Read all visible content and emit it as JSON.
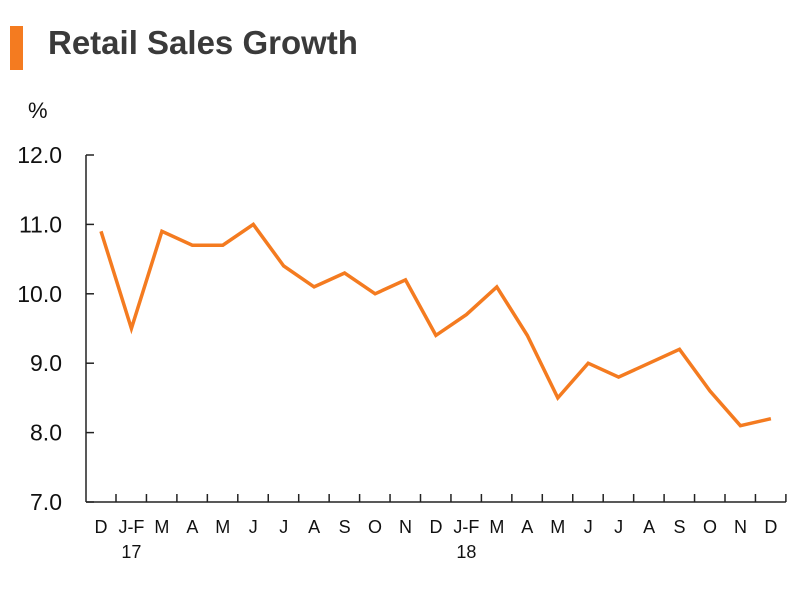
{
  "chart_data": {
    "type": "line",
    "title": "Retail Sales Growth",
    "ylabel": "%",
    "xlabel": "",
    "ylim": [
      7.0,
      12.0
    ],
    "y_ticks": [
      "12.0",
      "11.0",
      "10.0",
      "9.0",
      "8.0",
      "7.0"
    ],
    "y_tick_values": [
      12,
      11,
      10,
      9,
      8,
      7
    ],
    "categories": [
      "D",
      "J-F",
      "M",
      "A",
      "M",
      "J",
      "J",
      "A",
      "S",
      "O",
      "N",
      "D",
      "J-F",
      "M",
      "A",
      "M",
      "J",
      "J",
      "A",
      "S",
      "O",
      "N",
      "D"
    ],
    "year_labels": [
      {
        "index": 1,
        "label": "17"
      },
      {
        "index": 12,
        "label": "18"
      }
    ],
    "series": [
      {
        "values": [
          10.9,
          9.5,
          10.9,
          10.7,
          10.7,
          11.0,
          10.4,
          10.1,
          10.3,
          10.0,
          10.2,
          9.4,
          9.7,
          10.1,
          9.4,
          8.5,
          9.0,
          8.8,
          9.0,
          9.2,
          8.6,
          8.1,
          8.2
        ],
        "color": "#f47b20"
      }
    ],
    "accent_color": "#f47b20",
    "grid": false,
    "legend": "none"
  }
}
